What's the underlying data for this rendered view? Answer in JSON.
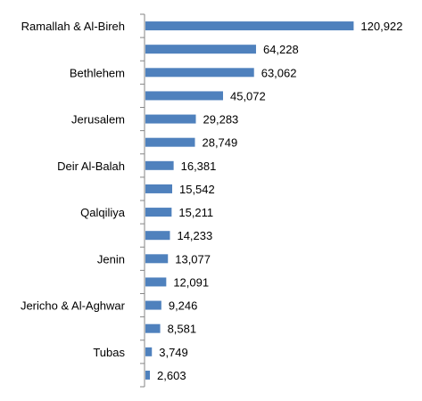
{
  "chart_data": {
    "type": "bar",
    "orientation": "horizontal",
    "categories": [
      "Ramallah & Al-Bireh",
      "",
      "Bethlehem",
      "",
      "Jerusalem",
      "",
      "Deir Al-Balah",
      "",
      "Qalqiliya",
      "",
      "Jenin",
      "",
      "Jericho & Al-Aghwar",
      "",
      "Tubas",
      ""
    ],
    "values": [
      120922,
      64228,
      63062,
      45072,
      29283,
      28749,
      16381,
      15542,
      15211,
      14233,
      13077,
      12091,
      9246,
      8581,
      3749,
      2603
    ],
    "value_labels": [
      "120,922",
      "64,228",
      "63,062",
      "45,072",
      "29,283",
      "28,749",
      "16,381",
      "15,542",
      "15,211",
      "14,233",
      "13,077",
      "12,091",
      "9,246",
      "8,581",
      "3,749",
      "2,603"
    ],
    "title": "",
    "xlabel": "",
    "ylabel": "",
    "xlim": [
      0,
      130000
    ],
    "grid": false,
    "legend": "none",
    "colors": {
      "bar": "#4F81BD",
      "axis": "#868686",
      "text": "#000000"
    }
  }
}
